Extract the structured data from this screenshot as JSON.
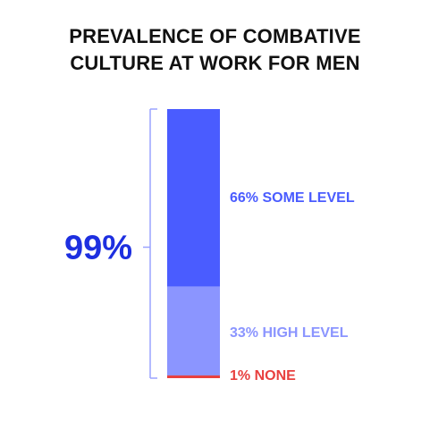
{
  "chart_data": {
    "type": "bar",
    "stacked": true,
    "title_lines": [
      "PREVALENCE OF COMBATIVE",
      "CULTURE AT WORK FOR MEN"
    ],
    "total_label": "99%",
    "total_value": 99,
    "series": [
      {
        "label": "66% SOME LEVEL",
        "value": 66,
        "color": "#4a5cff",
        "text_color": "#4a5cff"
      },
      {
        "label": "33% HIGH LEVEL",
        "value": 33,
        "color": "#8b95ff",
        "text_color": "#8b95ff"
      },
      {
        "label": "1% NONE",
        "value": 1,
        "color": "#e8403f",
        "text_color": "#e8403f"
      }
    ],
    "bracket_color": "#9aa3ff",
    "total_label_color": "#1d2fe0"
  }
}
